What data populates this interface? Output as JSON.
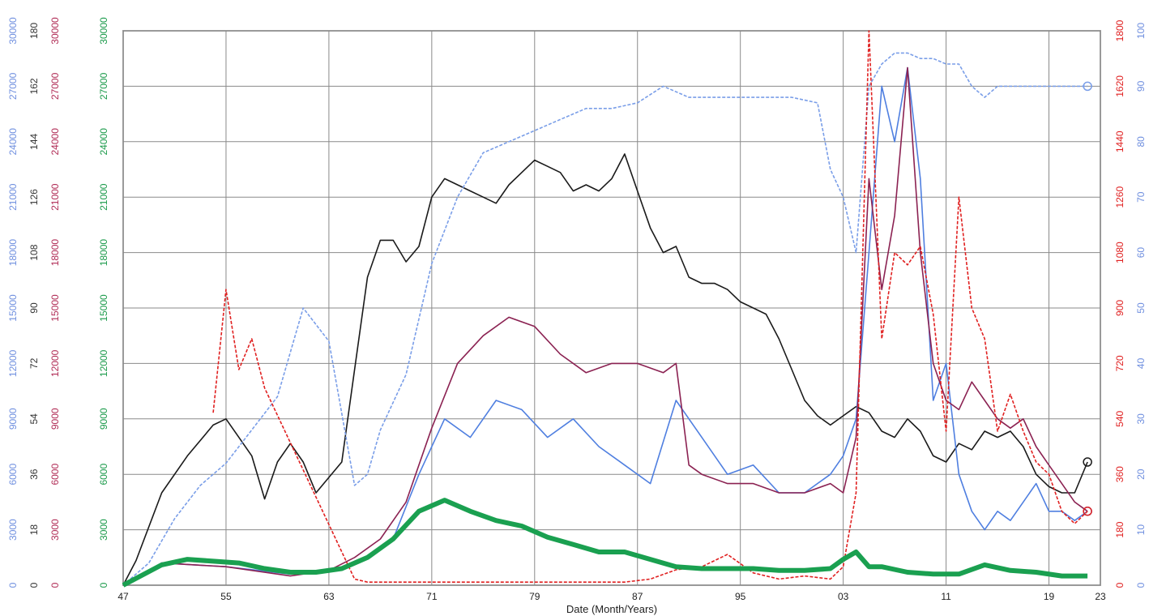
{
  "chart_data": {
    "type": "line",
    "title": "",
    "xlabel": "Date (Month/Years)",
    "x_ticks": [
      "47",
      "55",
      "63",
      "71",
      "79",
      "87",
      "95",
      "03",
      "11",
      "19",
      "23"
    ],
    "x_tick_years": [
      1947,
      1955,
      1963,
      1971,
      1979,
      1987,
      1995,
      2003,
      2011,
      2019,
      2023
    ],
    "xlim": [
      1947,
      2023
    ],
    "grid": true,
    "legend": "none",
    "left_axes": [
      {
        "color": "#6f8fdf",
        "ylim": [
          0,
          30000
        ],
        "ticks": [
          "0",
          "3000",
          "6000",
          "9000",
          "12000",
          "15000",
          "18000",
          "21000",
          "24000",
          "27000",
          "30000"
        ]
      },
      {
        "color": "#333333",
        "ylim": [
          0,
          180
        ],
        "ticks": [
          "0",
          "18",
          "36",
          "54",
          "72",
          "90",
          "108",
          "126",
          "144",
          "162",
          "180"
        ]
      },
      {
        "color": "#b02b55",
        "ylim": [
          0,
          30000
        ],
        "ticks": [
          "0",
          "3000",
          "6000",
          "9000",
          "12000",
          "15000",
          "18000",
          "21000",
          "24000",
          "27000",
          "30000"
        ]
      },
      {
        "color": "#1a9a4a",
        "ylim": [
          0,
          30000
        ],
        "ticks": [
          "0",
          "3000",
          "6000",
          "9000",
          "12000",
          "15000",
          "18000",
          "21000",
          "24000",
          "27000",
          "30000"
        ]
      }
    ],
    "right_axes": [
      {
        "color": "#e02020",
        "ylim": [
          0,
          1800
        ],
        "ticks": [
          "0",
          "180",
          "360",
          "540",
          "720",
          "900",
          "1080",
          "1260",
          "1440",
          "1620",
          "1800"
        ]
      },
      {
        "color": "#6f8fdf",
        "ylim": [
          0,
          100
        ],
        "ticks": [
          "0",
          "10",
          "20",
          "30",
          "40",
          "50",
          "60",
          "70",
          "80",
          "90",
          "100"
        ]
      }
    ],
    "series": [
      {
        "color": "#1a1a1a",
        "axis": "left-1",
        "style": "solid",
        "end_marker": "circle",
        "x": [
          1947,
          1948,
          1950,
          1952,
          1954,
          1955,
          1956,
          1957,
          1958,
          1959,
          1960,
          1961,
          1962,
          1963,
          1964,
          1965,
          1966,
          1967,
          1968,
          1969,
          1970,
          1971,
          1972,
          1973,
          1974,
          1975,
          1976,
          1977,
          1978,
          1979,
          1980,
          1981,
          1982,
          1983,
          1984,
          1985,
          1986,
          1987,
          1988,
          1989,
          1990,
          1991,
          1992,
          1993,
          1994,
          1995,
          1996,
          1997,
          1998,
          1999,
          2000,
          2001,
          2002,
          2003,
          2004,
          2005,
          2006,
          2007,
          2008,
          2009,
          2010,
          2011,
          2012,
          2013,
          2014,
          2015,
          2016,
          2017,
          2018,
          2019,
          2020,
          2021,
          2022
        ],
        "y": [
          0,
          8,
          30,
          42,
          52,
          54,
          48,
          42,
          28,
          40,
          46,
          40,
          30,
          35,
          40,
          70,
          100,
          112,
          112,
          105,
          110,
          126,
          132,
          130,
          128,
          126,
          124,
          130,
          134,
          138,
          136,
          134,
          128,
          130,
          128,
          132,
          140,
          128,
          116,
          108,
          110,
          100,
          98,
          98,
          96,
          92,
          90,
          88,
          80,
          70,
          60,
          55,
          52,
          55,
          58,
          56,
          50,
          48,
          54,
          50,
          42,
          40,
          46,
          44,
          50,
          48,
          50,
          45,
          36,
          32,
          30,
          30,
          40
        ]
      },
      {
        "color": "#7a9ee8",
        "axis": "right-1",
        "style": "dashed",
        "end_marker": "circle",
        "x": [
          1947,
          1949,
          1951,
          1953,
          1955,
          1957,
          1959,
          1961,
          1963,
          1965,
          1966,
          1967,
          1969,
          1971,
          1973,
          1975,
          1977,
          1979,
          1981,
          1983,
          1985,
          1987,
          1989,
          1991,
          1993,
          1995,
          1997,
          1999,
          2001,
          2002,
          2003,
          2004,
          2005,
          2006,
          2007,
          2008,
          2009,
          2010,
          2011,
          2012,
          2013,
          2014,
          2015,
          2017,
          2019,
          2022
        ],
        "y": [
          0,
          4,
          12,
          18,
          22,
          28,
          34,
          50,
          44,
          18,
          20,
          28,
          38,
          58,
          70,
          78,
          80,
          82,
          84,
          86,
          86,
          87,
          90,
          88,
          88,
          88,
          88,
          88,
          87,
          75,
          70,
          60,
          90,
          94,
          96,
          96,
          95,
          95,
          94,
          94,
          90,
          88,
          90,
          90,
          90,
          90
        ]
      },
      {
        "color": "#4f7fe0",
        "axis": "left-0",
        "style": "solid",
        "end_marker": "circle",
        "x": [
          1947,
          1950,
          1955,
          1960,
          1963,
          1966,
          1968,
          1970,
          1972,
          1974,
          1976,
          1978,
          1980,
          1982,
          1984,
          1986,
          1988,
          1990,
          1992,
          1994,
          1996,
          1998,
          2000,
          2002,
          2003,
          2004,
          2005,
          2006,
          2007,
          2008,
          2009,
          2010,
          2011,
          2012,
          2013,
          2014,
          2015,
          2016,
          2017,
          2018,
          2019,
          2020,
          2021,
          2022
        ],
        "y": [
          0,
          1200,
          1000,
          600,
          700,
          1500,
          2500,
          6000,
          9000,
          8000,
          10000,
          9500,
          8000,
          9000,
          7500,
          6500,
          5500,
          10000,
          8000,
          6000,
          6500,
          5000,
          5000,
          6000,
          7000,
          9000,
          18000,
          27000,
          24000,
          28000,
          22000,
          10000,
          12000,
          6000,
          4000,
          3000,
          4000,
          3500,
          4500,
          5500,
          4000,
          4000,
          3500,
          4000
        ]
      },
      {
        "color": "#8b2252",
        "axis": "left-2",
        "style": "solid",
        "x": [
          1947,
          1950,
          1955,
          1960,
          1963,
          1965,
          1967,
          1969,
          1971,
          1973,
          1975,
          1977,
          1979,
          1981,
          1983,
          1985,
          1987,
          1989,
          1990,
          1991,
          1992,
          1994,
          1996,
          1998,
          2000,
          2002,
          2003,
          2004,
          2005,
          2006,
          2007,
          2008,
          2009,
          2010,
          2011,
          2012,
          2013,
          2014,
          2015,
          2016,
          2017,
          2018,
          2019,
          2020,
          2021,
          2022
        ],
        "y": [
          0,
          1200,
          1000,
          500,
          800,
          1500,
          2500,
          4500,
          8500,
          12000,
          13500,
          14500,
          14000,
          12500,
          11500,
          12000,
          12000,
          11500,
          12000,
          6500,
          6000,
          5500,
          5500,
          5000,
          5000,
          5500,
          5000,
          8000,
          22000,
          16000,
          20000,
          28000,
          18000,
          12000,
          10000,
          9500,
          11000,
          10000,
          9000,
          8500,
          9000,
          7500,
          6500,
          5500,
          4500,
          4000
        ]
      },
      {
        "color": "#e02020",
        "axis": "right-0",
        "style": "dashed",
        "end_marker": "circle",
        "x": [
          1954,
          1955,
          1956,
          1957,
          1958,
          1965,
          1966,
          1986,
          1987,
          1988,
          1990,
          1992,
          1994,
          1996,
          1998,
          2000,
          2002,
          2003,
          2004,
          2005,
          2006,
          2007,
          2008,
          2009,
          2010,
          2011,
          2012,
          2013,
          2014,
          2015,
          2016,
          2017,
          2018,
          2019,
          2020,
          2021,
          2022
        ],
        "y": [
          560,
          960,
          700,
          800,
          640,
          20,
          10,
          10,
          15,
          20,
          50,
          60,
          100,
          40,
          20,
          30,
          20,
          60,
          300,
          1800,
          800,
          1080,
          1040,
          1100,
          880,
          500,
          1260,
          900,
          800,
          500,
          620,
          500,
          400,
          360,
          240,
          200,
          240
        ]
      },
      {
        "color": "#1aa050",
        "axis": "left-3",
        "style": "thick",
        "x": [
          1947,
          1950,
          1952,
          1954,
          1956,
          1958,
          1960,
          1962,
          1964,
          1966,
          1968,
          1970,
          1972,
          1974,
          1976,
          1978,
          1980,
          1982,
          1984,
          1986,
          1988,
          1990,
          1992,
          1994,
          1996,
          1998,
          2000,
          2002,
          2003,
          2004,
          2005,
          2006,
          2008,
          2010,
          2012,
          2014,
          2016,
          2018,
          2020,
          2022
        ],
        "y": [
          0,
          1100,
          1400,
          1300,
          1200,
          900,
          700,
          700,
          900,
          1500,
          2500,
          4000,
          4600,
          4000,
          3500,
          3200,
          2600,
          2200,
          1800,
          1800,
          1400,
          1000,
          900,
          900,
          900,
          800,
          800,
          900,
          1400,
          1800,
          1000,
          1000,
          700,
          600,
          600,
          1100,
          800,
          700,
          500,
          500
        ]
      }
    ]
  }
}
